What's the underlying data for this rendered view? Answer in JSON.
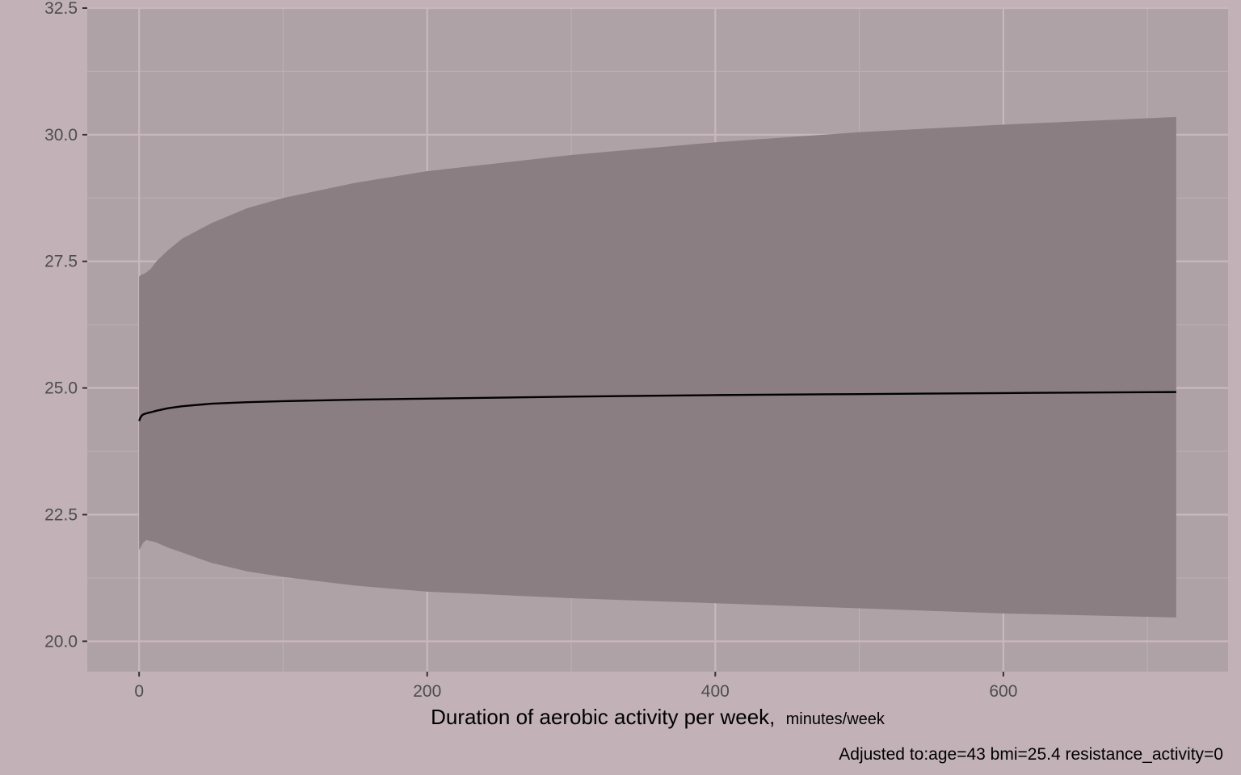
{
  "chart_data": {
    "type": "line",
    "x": [
      0,
      1,
      2,
      3,
      5,
      8,
      12,
      20,
      30,
      50,
      75,
      100,
      150,
      200,
      300,
      400,
      500,
      600,
      720
    ],
    "series": [
      {
        "values": [
          24.35,
          24.42,
          24.46,
          24.48,
          24.5,
          24.52,
          24.55,
          24.6,
          24.64,
          24.69,
          24.72,
          24.74,
          24.77,
          24.79,
          24.83,
          24.86,
          24.88,
          24.9,
          24.92
        ],
        "color": "#000000"
      }
    ],
    "confidence_band": {
      "lower": [
        21.8,
        21.85,
        21.9,
        21.95,
        22.0,
        21.98,
        21.95,
        21.85,
        21.75,
        21.55,
        21.38,
        21.27,
        21.1,
        20.98,
        20.85,
        20.75,
        20.65,
        20.55,
        20.47
      ],
      "upper": [
        27.2,
        27.22,
        27.24,
        27.25,
        27.28,
        27.35,
        27.5,
        27.72,
        27.95,
        28.25,
        28.55,
        28.75,
        29.05,
        29.28,
        29.6,
        29.85,
        30.05,
        30.2,
        30.35
      ],
      "color": "#8a7e82"
    },
    "xlabel": "Duration of aerobic activity per week,",
    "xlabel_unit": "minutes/week",
    "ylabel": "",
    "xlim": [
      -36,
      756
    ],
    "ylim": [
      19.4,
      32.5
    ],
    "x_ticks": [
      0,
      200,
      400,
      600
    ],
    "x_minor_ticks": [
      100,
      300,
      500,
      700
    ],
    "y_ticks": [
      20.0,
      22.5,
      25.0,
      27.5,
      30.0,
      32.5
    ],
    "y_minor_ticks": [
      21.25,
      23.75,
      26.25,
      28.75,
      31.25
    ],
    "x_tick_labels": [
      "0",
      "200",
      "400",
      "600"
    ],
    "y_tick_labels": [
      "20.0",
      "22.5",
      "25.0",
      "27.5",
      "30.0",
      "32.5"
    ],
    "grid": true,
    "caption": "Adjusted to:age=43 bmi=25.4 resistance_activity=0",
    "colors": {
      "page_background": "#c2b2b8",
      "panel_background": "#afa2a6",
      "grid_major": "#c8b8be",
      "grid_minor": "#bcaeb2",
      "tick_text": "#4d4d4d",
      "line": "#000000"
    }
  }
}
